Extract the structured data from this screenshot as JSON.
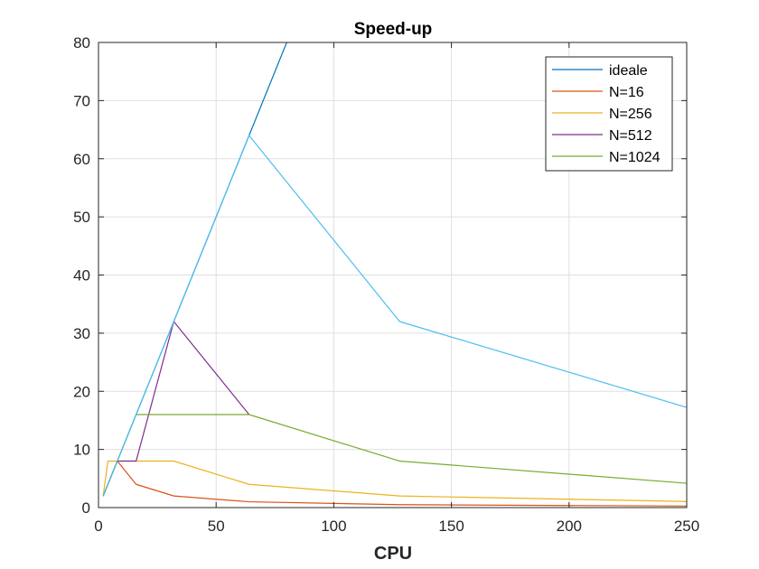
{
  "chart_data": {
    "type": "line",
    "title": "Speed-up",
    "xlabel": "CPU",
    "ylabel": "",
    "xlim": [
      0,
      250
    ],
    "ylim": [
      0,
      80
    ],
    "xticks": [
      0,
      50,
      100,
      150,
      200,
      250
    ],
    "yticks": [
      0,
      10,
      20,
      30,
      40,
      50,
      60,
      70,
      80
    ],
    "xtick_labels": [
      "0",
      "50",
      "100",
      "150",
      "200",
      "250"
    ],
    "ytick_labels": [
      "0",
      "10",
      "20",
      "30",
      "40",
      "50",
      "60",
      "70",
      "80"
    ],
    "grid": true,
    "legend_position": "top-right",
    "series": [
      {
        "name": "ideale",
        "color": "#0072bd",
        "x": [
          2,
          4,
          8,
          16,
          32,
          64,
          128
        ],
        "y": [
          2,
          4,
          8,
          16,
          32,
          64,
          128
        ]
      },
      {
        "name": "N=16",
        "color": "#d95319",
        "x": [
          2,
          4,
          8,
          16,
          32,
          64,
          128,
          256
        ],
        "y": [
          2,
          4,
          8,
          4,
          2,
          1,
          0.5,
          0.25
        ]
      },
      {
        "name": "N=256",
        "color": "#edb120",
        "x": [
          2,
          4,
          8,
          16,
          32,
          64,
          128,
          256
        ],
        "y": [
          2,
          8,
          8,
          8,
          8,
          4,
          2,
          1
        ]
      },
      {
        "name": "N=512",
        "color": "#7e2f8e",
        "x": [
          2,
          4,
          8,
          16,
          32,
          64
        ],
        "y": [
          2,
          4,
          8,
          8,
          32,
          16
        ]
      },
      {
        "name": "N=1024",
        "color": "#77ac30",
        "x": [
          2,
          4,
          8,
          16,
          32,
          64,
          128,
          256
        ],
        "y": [
          2,
          4,
          8,
          16,
          16,
          16,
          8,
          4
        ]
      },
      {
        "name": "",
        "color": "#4dbeee",
        "x": [
          2,
          4,
          8,
          16,
          32,
          64,
          128,
          256
        ],
        "y": [
          2,
          4,
          8,
          16,
          32,
          64,
          32,
          16.5
        ]
      }
    ]
  }
}
